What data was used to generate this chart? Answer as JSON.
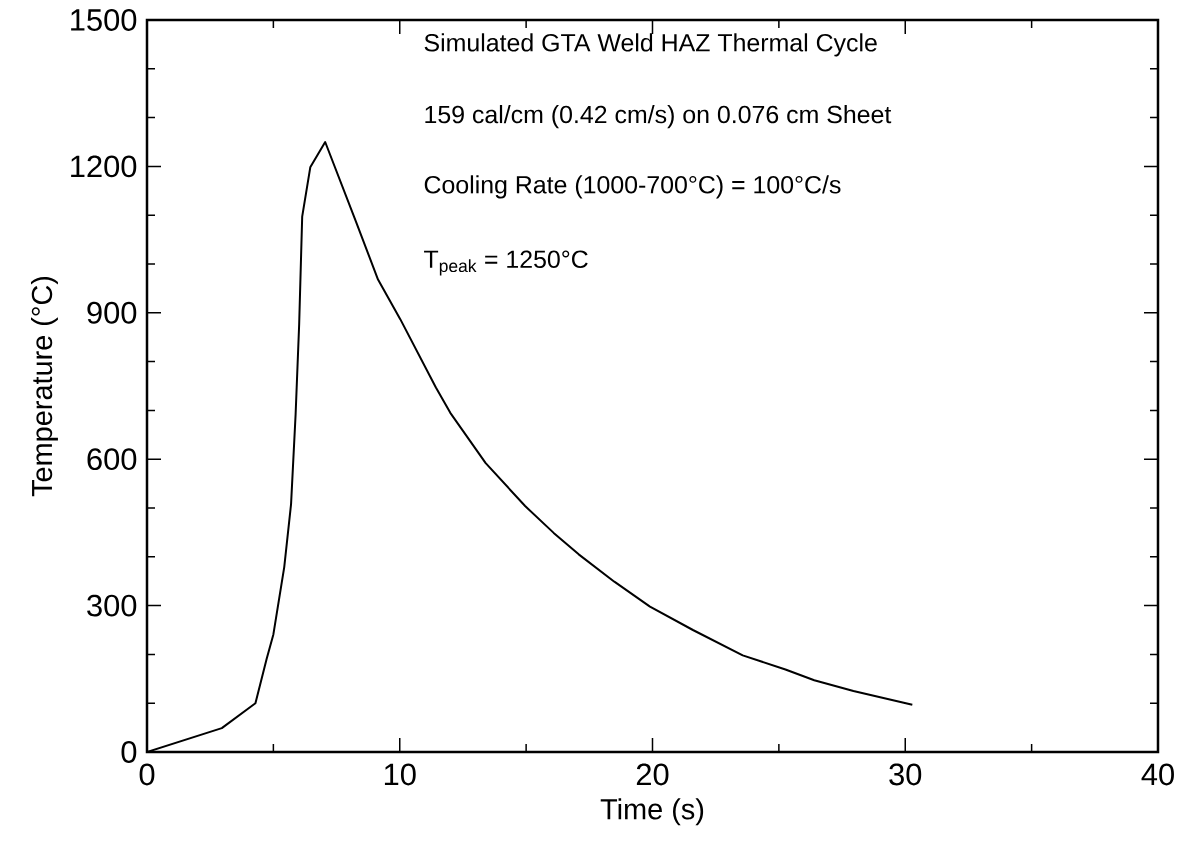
{
  "chart_data": {
    "type": "line",
    "xlabel": "Time (s)",
    "ylabel": "Temperature (°C)",
    "annotations": [
      "Simulated GTA Weld HAZ Thermal Cycle",
      "159 cal/cm (0.42 cm/s) on 0.076 cm Sheet",
      "Cooling Rate (1000-700°C) = 100°C/s",
      "T$_{peak}$ = 1250°C"
    ],
    "xlim": [
      0,
      40
    ],
    "ylim": [
      0,
      1500
    ],
    "xticks": [
      0,
      {
        "value": 5,
        "label": null
      },
      10,
      {
        "value": 15,
        "label": null
      },
      20,
      {
        "value": 25,
        "label": null
      },
      30,
      {
        "value": 35,
        "label": null
      },
      40
    ],
    "yticks": [
      0,
      {
        "value": 100,
        "label": null
      },
      {
        "value": 200,
        "label": null
      },
      300,
      {
        "value": 400,
        "label": null
      },
      {
        "value": 500,
        "label": null
      },
      600,
      {
        "value": 700,
        "label": null
      },
      {
        "value": 800,
        "label": null
      },
      900,
      {
        "value": 1000,
        "label": null
      },
      {
        "value": 1100,
        "label": null
      },
      1200,
      {
        "value": 1300,
        "label": null
      },
      {
        "value": 1400,
        "label": null
      },
      1500
    ],
    "marker": "none",
    "line_style": "solid",
    "series": [
      {
        "color": "#000000",
        "x": [
          0,
          2.96,
          4.29,
          4.73,
          5.0,
          5.43,
          5.7,
          5.88,
          6.02,
          6.14,
          6.46,
          7.05,
          8.26,
          9.14,
          10.02,
          11.43,
          12.0,
          13.4,
          14.96,
          16.09,
          17.08,
          18.49,
          19.9,
          21.6,
          23.57,
          25.26,
          26.4,
          27.95,
          30.28
        ],
        "values": [
          0,
          49,
          100,
          190,
          241,
          379,
          508,
          692,
          876,
          1097,
          1198,
          1250,
          1088,
          968,
          887,
          747,
          695,
          592,
          504,
          449,
          405,
          349,
          298,
          250,
          198,
          169,
          147,
          125,
          97
        ]
      }
    ]
  }
}
